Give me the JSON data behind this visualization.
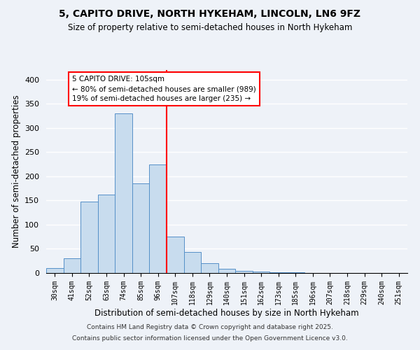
{
  "title": "5, CAPITO DRIVE, NORTH HYKEHAM, LINCOLN, LN6 9FZ",
  "subtitle": "Size of property relative to semi-detached houses in North Hykeham",
  "xlabel": "Distribution of semi-detached houses by size in North Hykeham",
  "ylabel": "Number of semi-detached properties",
  "bar_labels": [
    "30sqm",
    "41sqm",
    "52sqm",
    "63sqm",
    "74sqm",
    "85sqm",
    "96sqm",
    "107sqm",
    "118sqm",
    "129sqm",
    "140sqm",
    "151sqm",
    "162sqm",
    "173sqm",
    "185sqm",
    "196sqm",
    "207sqm",
    "218sqm",
    "229sqm",
    "240sqm",
    "251sqm"
  ],
  "bar_values": [
    10,
    30,
    148,
    162,
    330,
    185,
    225,
    75,
    43,
    20,
    8,
    5,
    3,
    2,
    1,
    0,
    0,
    0,
    0,
    0,
    0
  ],
  "bar_color": "#c8dcee",
  "bar_edge_color": "#5590c8",
  "red_line_after_index": 6,
  "ylim": [
    0,
    420
  ],
  "yticks": [
    0,
    50,
    100,
    150,
    200,
    250,
    300,
    350,
    400
  ],
  "annotation_title": "5 CAPITO DRIVE: 105sqm",
  "annotation_line1": "← 80% of semi-detached houses are smaller (989)",
  "annotation_line2": "19% of semi-detached houses are larger (235) →",
  "background_color": "#eef2f8",
  "grid_color": "#ffffff",
  "footer1": "Contains HM Land Registry data © Crown copyright and database right 2025.",
  "footer2": "Contains public sector information licensed under the Open Government Licence v3.0."
}
